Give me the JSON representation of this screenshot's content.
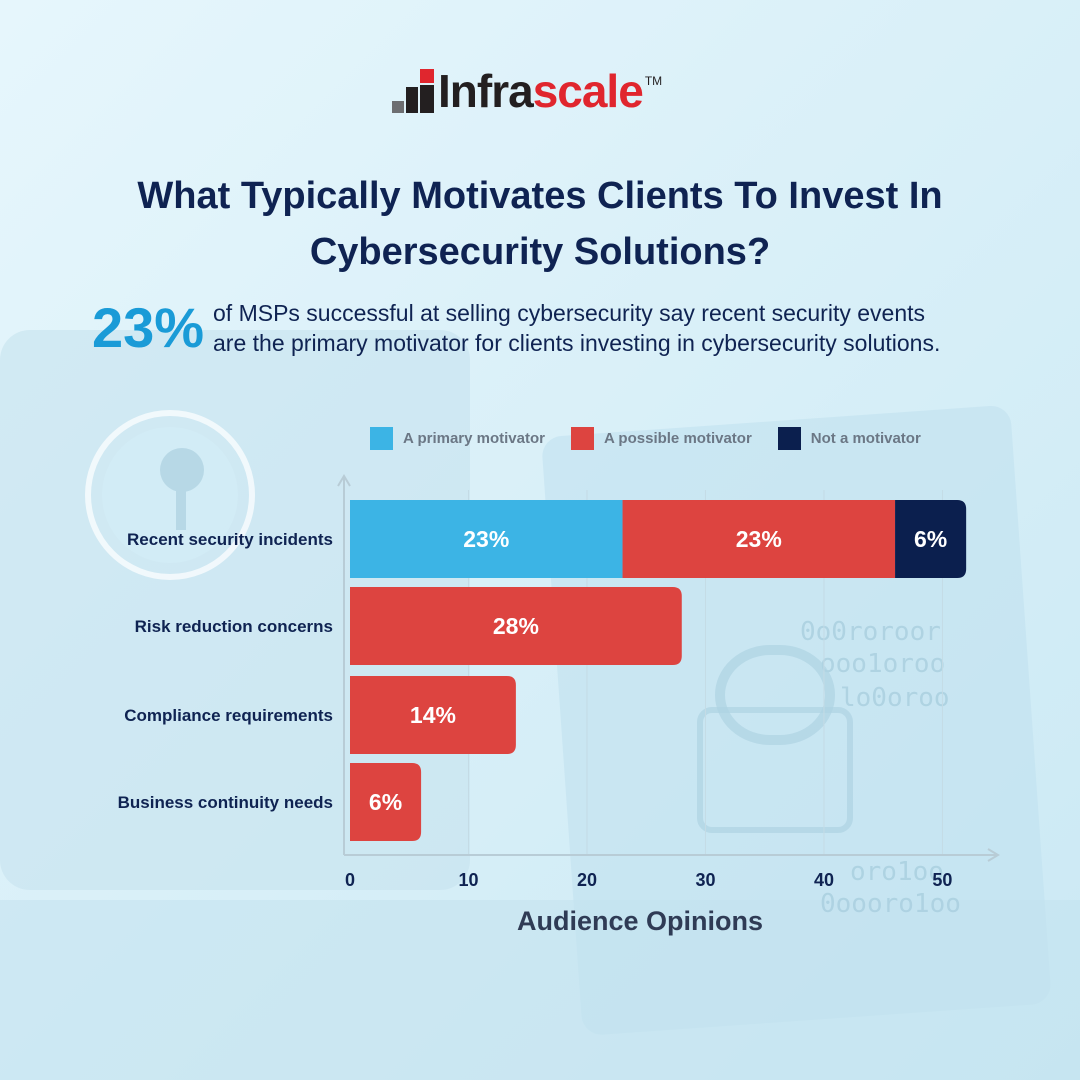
{
  "brand": {
    "name_a": "Infra",
    "name_b": "scale",
    "tm": "TM"
  },
  "headline": {
    "line1": "What Typically Motivates Clients To Invest In",
    "line2": "Cybersecurity Solutions?"
  },
  "stat": {
    "value": "23%",
    "line1": "of MSPs successful at selling cybersecurity say recent security events",
    "line2": "are the primary motivator for clients investing in cybersecurity solutions."
  },
  "colors": {
    "primary": "#3cb4e5",
    "possible": "#dd4440",
    "not": "#0b1f4e",
    "title": "#0f2352",
    "accent": "#1a9bd7"
  },
  "chart_data": {
    "type": "bar",
    "orientation": "horizontal",
    "stacked": true,
    "categories": [
      "Recent security incidents",
      "Risk reduction concerns",
      "Compliance requirements",
      "Business continuity needs"
    ],
    "series": [
      {
        "name": "A primary motivator",
        "values": [
          23,
          0,
          0,
          0
        ],
        "labels": [
          "23%",
          "",
          "",
          ""
        ]
      },
      {
        "name": "A possible motivator",
        "values": [
          23,
          28,
          14,
          6
        ],
        "labels": [
          "23%",
          "28%",
          "14%",
          "6%"
        ]
      },
      {
        "name": "Not a motivator",
        "values": [
          6,
          0,
          0,
          0
        ],
        "labels": [
          "6%",
          "",
          "",
          ""
        ]
      }
    ],
    "xlabel": "Audience Opinions",
    "ylabel": "",
    "xlim": [
      0,
      53
    ],
    "xticks": [
      0,
      10,
      20,
      30,
      40,
      50
    ],
    "grid": true,
    "legend": "top"
  }
}
